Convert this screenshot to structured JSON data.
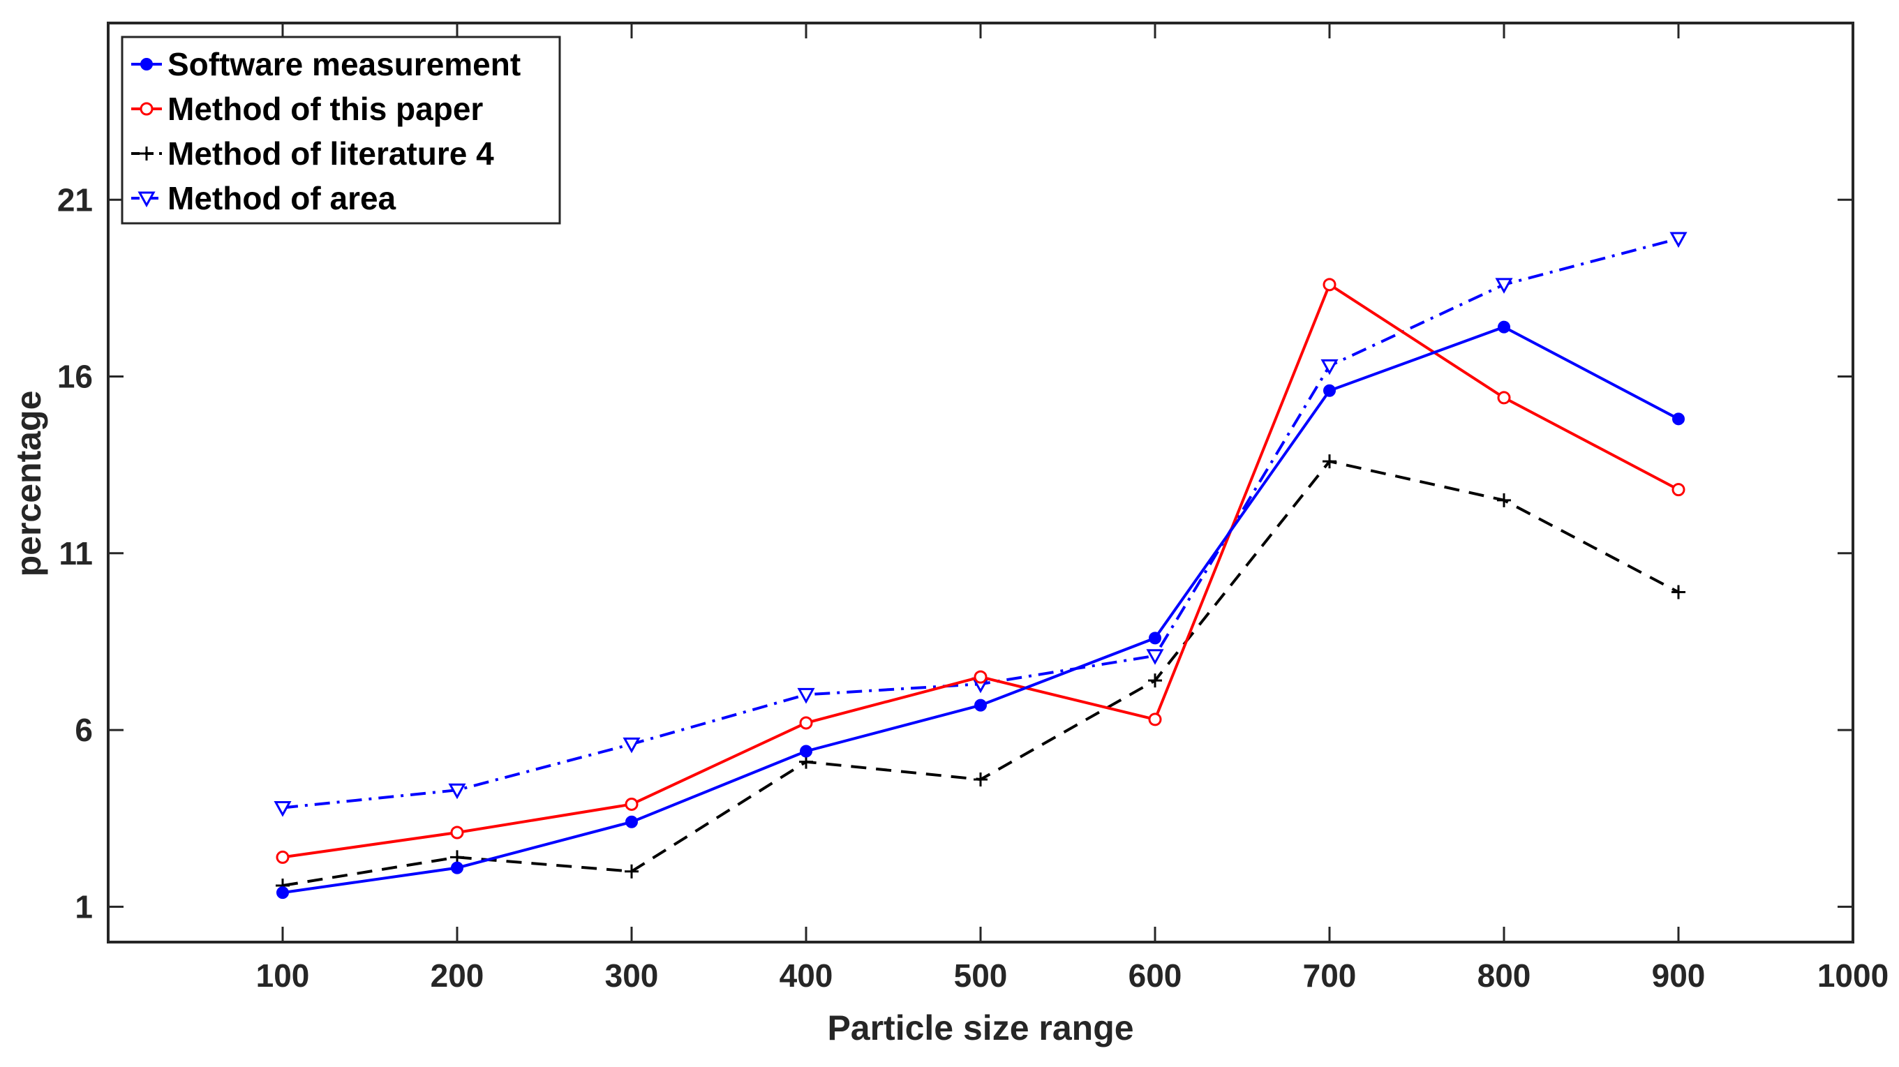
{
  "chart_data": {
    "type": "line",
    "title": "",
    "xlabel": "Particle size range",
    "ylabel": "percentage",
    "xlim": [
      0,
      1000
    ],
    "ylim": [
      0,
      26
    ],
    "xticks": [
      100,
      200,
      300,
      400,
      500,
      600,
      700,
      800,
      900,
      1000
    ],
    "yticks": [
      1,
      6,
      11,
      16,
      21
    ],
    "legend_position": "top-left",
    "grid": false,
    "x": [
      100,
      200,
      300,
      400,
      500,
      600,
      700,
      800,
      900
    ],
    "series": [
      {
        "name": "Software measurement",
        "color": "#0000ff",
        "line_style": "solid",
        "marker": "dot",
        "values": [
          1.4,
          2.1,
          3.4,
          5.4,
          6.7,
          8.6,
          15.6,
          17.4,
          14.8
        ]
      },
      {
        "name": "Method of this paper",
        "color": "#ff0000",
        "line_style": "solid",
        "marker": "circle",
        "values": [
          2.4,
          3.1,
          3.9,
          6.2,
          7.5,
          6.3,
          18.6,
          15.4,
          12.8
        ]
      },
      {
        "name": "Method of literature 4",
        "color": "#000000",
        "line_style": "dashed",
        "marker": "plus",
        "values": [
          1.6,
          2.4,
          2.0,
          5.1,
          4.6,
          7.4,
          13.6,
          12.5,
          9.9
        ]
      },
      {
        "name": "Method of area",
        "color": "#0000ff",
        "line_style": "dashdot",
        "marker": "triangle-down",
        "values": [
          3.8,
          4.3,
          5.6,
          7.0,
          7.3,
          8.1,
          16.3,
          18.6,
          19.9
        ]
      }
    ]
  }
}
